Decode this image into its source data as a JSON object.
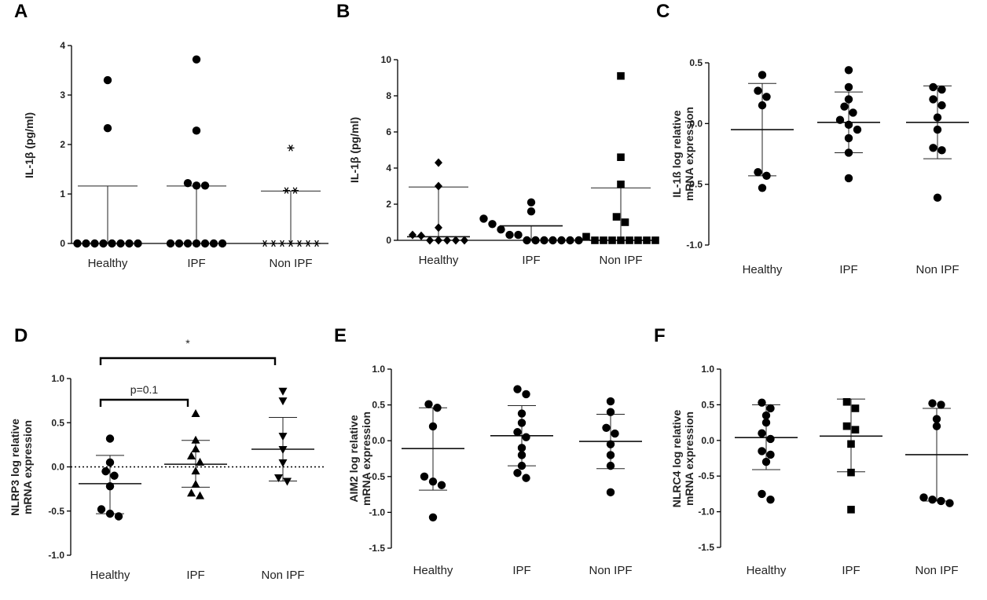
{
  "chart_data": [
    {
      "panel": "A",
      "type": "scatter",
      "ylabel": "IL-1β (pg/ml)",
      "ylim": [
        0,
        4
      ],
      "yticks": [
        0,
        1,
        2,
        3,
        4
      ],
      "categories": [
        "Healthy",
        "IPF",
        "Non IPF"
      ],
      "markers": [
        "circle",
        "circle",
        "asterisk"
      ],
      "series": [
        {
          "name": "Healthy",
          "values": [
            0,
            0,
            0,
            0,
            0,
            0,
            0,
            0,
            2.33,
            3.3
          ],
          "center": 0,
          "err_high": 1.16,
          "err_low": 0
        },
        {
          "name": "IPF",
          "values": [
            0,
            0,
            0,
            0,
            0,
            0,
            0,
            1.17,
            1.17,
            1.22,
            2.28,
            3.72
          ],
          "center": 0,
          "err_high": 1.16,
          "err_low": 0
        },
        {
          "name": "Non IPF",
          "values": [
            0,
            0,
            0,
            0,
            0,
            0,
            0,
            1.07,
            1.07,
            1.93
          ],
          "center": 0,
          "err_high": 1.06,
          "err_low": 0
        }
      ]
    },
    {
      "panel": "B",
      "type": "scatter",
      "ylabel": "IL-1β (pg/ml)",
      "ylim": [
        0,
        10
      ],
      "yticks": [
        0,
        2,
        4,
        6,
        8,
        10
      ],
      "categories": [
        "Healthy",
        "IPF",
        "Non IPF"
      ],
      "markers": [
        "diamond",
        "circle",
        "square"
      ],
      "series": [
        {
          "name": "Healthy",
          "values": [
            0,
            0,
            0,
            0,
            0,
            0.25,
            0.3,
            0.7,
            3.0,
            4.3
          ],
          "center": 0.2,
          "err_high": 2.95,
          "err_low": 0.2
        },
        {
          "name": "IPF",
          "values": [
            0,
            0,
            0,
            0,
            0,
            0,
            0,
            0.3,
            0.3,
            0.6,
            0.9,
            1.2,
            1.6,
            2.1
          ],
          "center": 0.8,
          "err_high": 0.8,
          "err_low": 0
        },
        {
          "name": "Non IPF",
          "values": [
            0,
            0,
            0,
            0,
            0,
            0,
            0,
            0,
            0.2,
            1.0,
            1.3,
            3.1,
            4.6,
            9.1
          ],
          "center": 0,
          "err_high": 2.9,
          "err_low": 0
        }
      ]
    },
    {
      "panel": "C",
      "type": "scatter",
      "ylabel": "IL-1ß log relative mRNA expression",
      "ylim": [
        -1.0,
        0.5
      ],
      "yticks": [
        -1.0,
        -0.5,
        0.0,
        0.5
      ],
      "yticklabels": [
        "-1.0",
        "-0.5",
        "0.0",
        "0.5"
      ],
      "categories": [
        "Healthy",
        "IPF",
        "Non IPF"
      ],
      "markers": [
        "circle",
        "circle",
        "circle"
      ],
      "series": [
        {
          "name": "Healthy",
          "values": [
            0.4,
            0.27,
            0.22,
            0.15,
            -0.4,
            -0.43,
            -0.53
          ],
          "mean": -0.05,
          "sd_high": 0.33,
          "sd_low": -0.43
        },
        {
          "name": "IPF",
          "values": [
            0.44,
            0.3,
            0.2,
            0.14,
            0.09,
            0.03,
            -0.01,
            -0.05,
            -0.12,
            -0.24,
            -0.45
          ],
          "mean": 0.01,
          "sd_high": 0.26,
          "sd_low": -0.24
        },
        {
          "name": "Non IPF",
          "values": [
            0.3,
            0.28,
            0.2,
            0.15,
            0.05,
            -0.05,
            -0.2,
            -0.22,
            -0.61
          ],
          "mean": 0.01,
          "sd_high": 0.31,
          "sd_low": -0.29
        }
      ]
    },
    {
      "panel": "D",
      "type": "scatter",
      "ylabel": "NLRP3 log relative mRNA expression",
      "ylim": [
        -1.0,
        1.0
      ],
      "yticks": [
        -1.0,
        -0.5,
        0.0,
        0.5,
        1.0
      ],
      "yticklabels": [
        "-1.0",
        "-0.5",
        "0.0",
        "0.5",
        "1.0"
      ],
      "categories": [
        "Healthy",
        "IPF",
        "Non IPF"
      ],
      "markers": [
        "circle",
        "triangle-up",
        "triangle-down"
      ],
      "series": [
        {
          "name": "Healthy",
          "values": [
            0.32,
            0.05,
            -0.05,
            -0.1,
            -0.22,
            -0.48,
            -0.53,
            -0.56
          ],
          "mean": -0.19,
          "sd_high": 0.13,
          "sd_low": -0.53
        },
        {
          "name": "IPF",
          "values": [
            0.6,
            0.3,
            0.2,
            0.12,
            0.05,
            -0.05,
            -0.2,
            -0.3,
            -0.33
          ],
          "mean": 0.03,
          "sd_high": 0.3,
          "sd_low": -0.23
        },
        {
          "name": "Non IPF",
          "values": [
            0.86,
            0.75,
            0.35,
            0.2,
            0.05,
            -0.12,
            -0.16
          ],
          "mean": 0.2,
          "sd_high": 0.56,
          "sd_low": -0.16
        }
      ],
      "reference_line": 0,
      "annotations": [
        {
          "text": "p=0.1",
          "from": "Healthy",
          "to": "IPF"
        },
        {
          "text": "*",
          "from": "Healthy",
          "to": "Non IPF"
        }
      ]
    },
    {
      "panel": "E",
      "type": "scatter",
      "ylabel": "AIM2 log relative mRNA expression",
      "ylim": [
        -1.5,
        1.0
      ],
      "yticks": [
        -1.5,
        -1.0,
        -0.5,
        0.0,
        0.5,
        1.0
      ],
      "yticklabels": [
        "-1.5",
        "-1.0",
        "-0.5",
        "0.0",
        "0.5",
        "1.0"
      ],
      "categories": [
        "Healthy",
        "IPF",
        "Non IPF"
      ],
      "markers": [
        "circle",
        "circle",
        "circle"
      ],
      "series": [
        {
          "name": "Healthy",
          "values": [
            0.51,
            0.46,
            0.2,
            -0.5,
            -0.57,
            -0.62,
            -1.07
          ],
          "mean": -0.11,
          "sd_high": 0.46,
          "sd_low": -0.69
        },
        {
          "name": "IPF",
          "values": [
            0.72,
            0.65,
            0.38,
            0.25,
            0.12,
            0.05,
            -0.1,
            -0.2,
            -0.35,
            -0.45,
            -0.52
          ],
          "mean": 0.07,
          "sd_high": 0.49,
          "sd_low": -0.35
        },
        {
          "name": "Non IPF",
          "values": [
            0.55,
            0.4,
            0.18,
            0.1,
            -0.05,
            -0.2,
            -0.35,
            -0.72
          ],
          "mean": -0.01,
          "sd_high": 0.37,
          "sd_low": -0.39
        }
      ]
    },
    {
      "panel": "F",
      "type": "scatter",
      "ylabel": "NLRC4 log relative mRNA expression",
      "ylim": [
        -1.5,
        1.0
      ],
      "yticks": [
        -1.5,
        -1.0,
        -0.5,
        0.0,
        0.5,
        1.0
      ],
      "yticklabels": [
        "-1.5",
        "-1.0",
        "-0.5",
        "0.0",
        "0.5",
        "1.0"
      ],
      "categories": [
        "Healthy",
        "IPF",
        "Non IPF"
      ],
      "markers": [
        "circle",
        "square",
        "circle"
      ],
      "series": [
        {
          "name": "Healthy",
          "values": [
            0.53,
            0.45,
            0.35,
            0.25,
            0.1,
            0.02,
            -0.15,
            -0.2,
            -0.3,
            -0.75,
            -0.83
          ],
          "mean": 0.04,
          "sd_high": 0.5,
          "sd_low": -0.41
        },
        {
          "name": "IPF",
          "values": [
            0.54,
            0.45,
            0.2,
            0.15,
            -0.05,
            -0.45,
            -0.97
          ],
          "mean": 0.06,
          "sd_high": 0.58,
          "sd_low": -0.44
        },
        {
          "name": "Non IPF",
          "values": [
            0.52,
            0.5,
            0.3,
            0.2,
            -0.8,
            -0.83,
            -0.85,
            -0.88
          ],
          "mean": -0.2,
          "sd_high": 0.45,
          "sd_low": -0.85
        }
      ]
    }
  ]
}
